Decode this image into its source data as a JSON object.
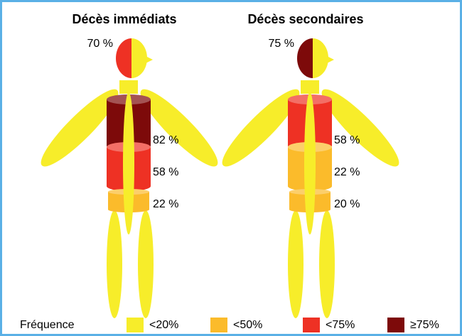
{
  "figures": [
    {
      "title": "Décès immédiats",
      "head": {
        "label": "70 %",
        "color": "#ee3124"
      },
      "segments": [
        {
          "label": "82 %",
          "color": "#7d0a0a"
        },
        {
          "label": "58 %",
          "color": "#ee3124"
        },
        {
          "label": "22 %",
          "color": "#fbbb2b"
        }
      ]
    },
    {
      "title": "Décès secondaires",
      "head": {
        "label": "75 %",
        "color": "#7d0a0a"
      },
      "segments": [
        {
          "label": "58 %",
          "color": "#ee3124"
        },
        {
          "label": "22 %",
          "color": "#fbbb2b"
        },
        {
          "label": "20 %",
          "color": "#fbbb2b"
        }
      ]
    }
  ],
  "legend": {
    "title": "Fréquence",
    "items": [
      {
        "label": "<20%",
        "color": "#f7ed2a"
      },
      {
        "label": "<50%",
        "color": "#fbbb2b"
      },
      {
        "label": "<75%",
        "color": "#ee3124"
      },
      {
        "label": "≥75%",
        "color": "#7d0a0a"
      }
    ]
  }
}
